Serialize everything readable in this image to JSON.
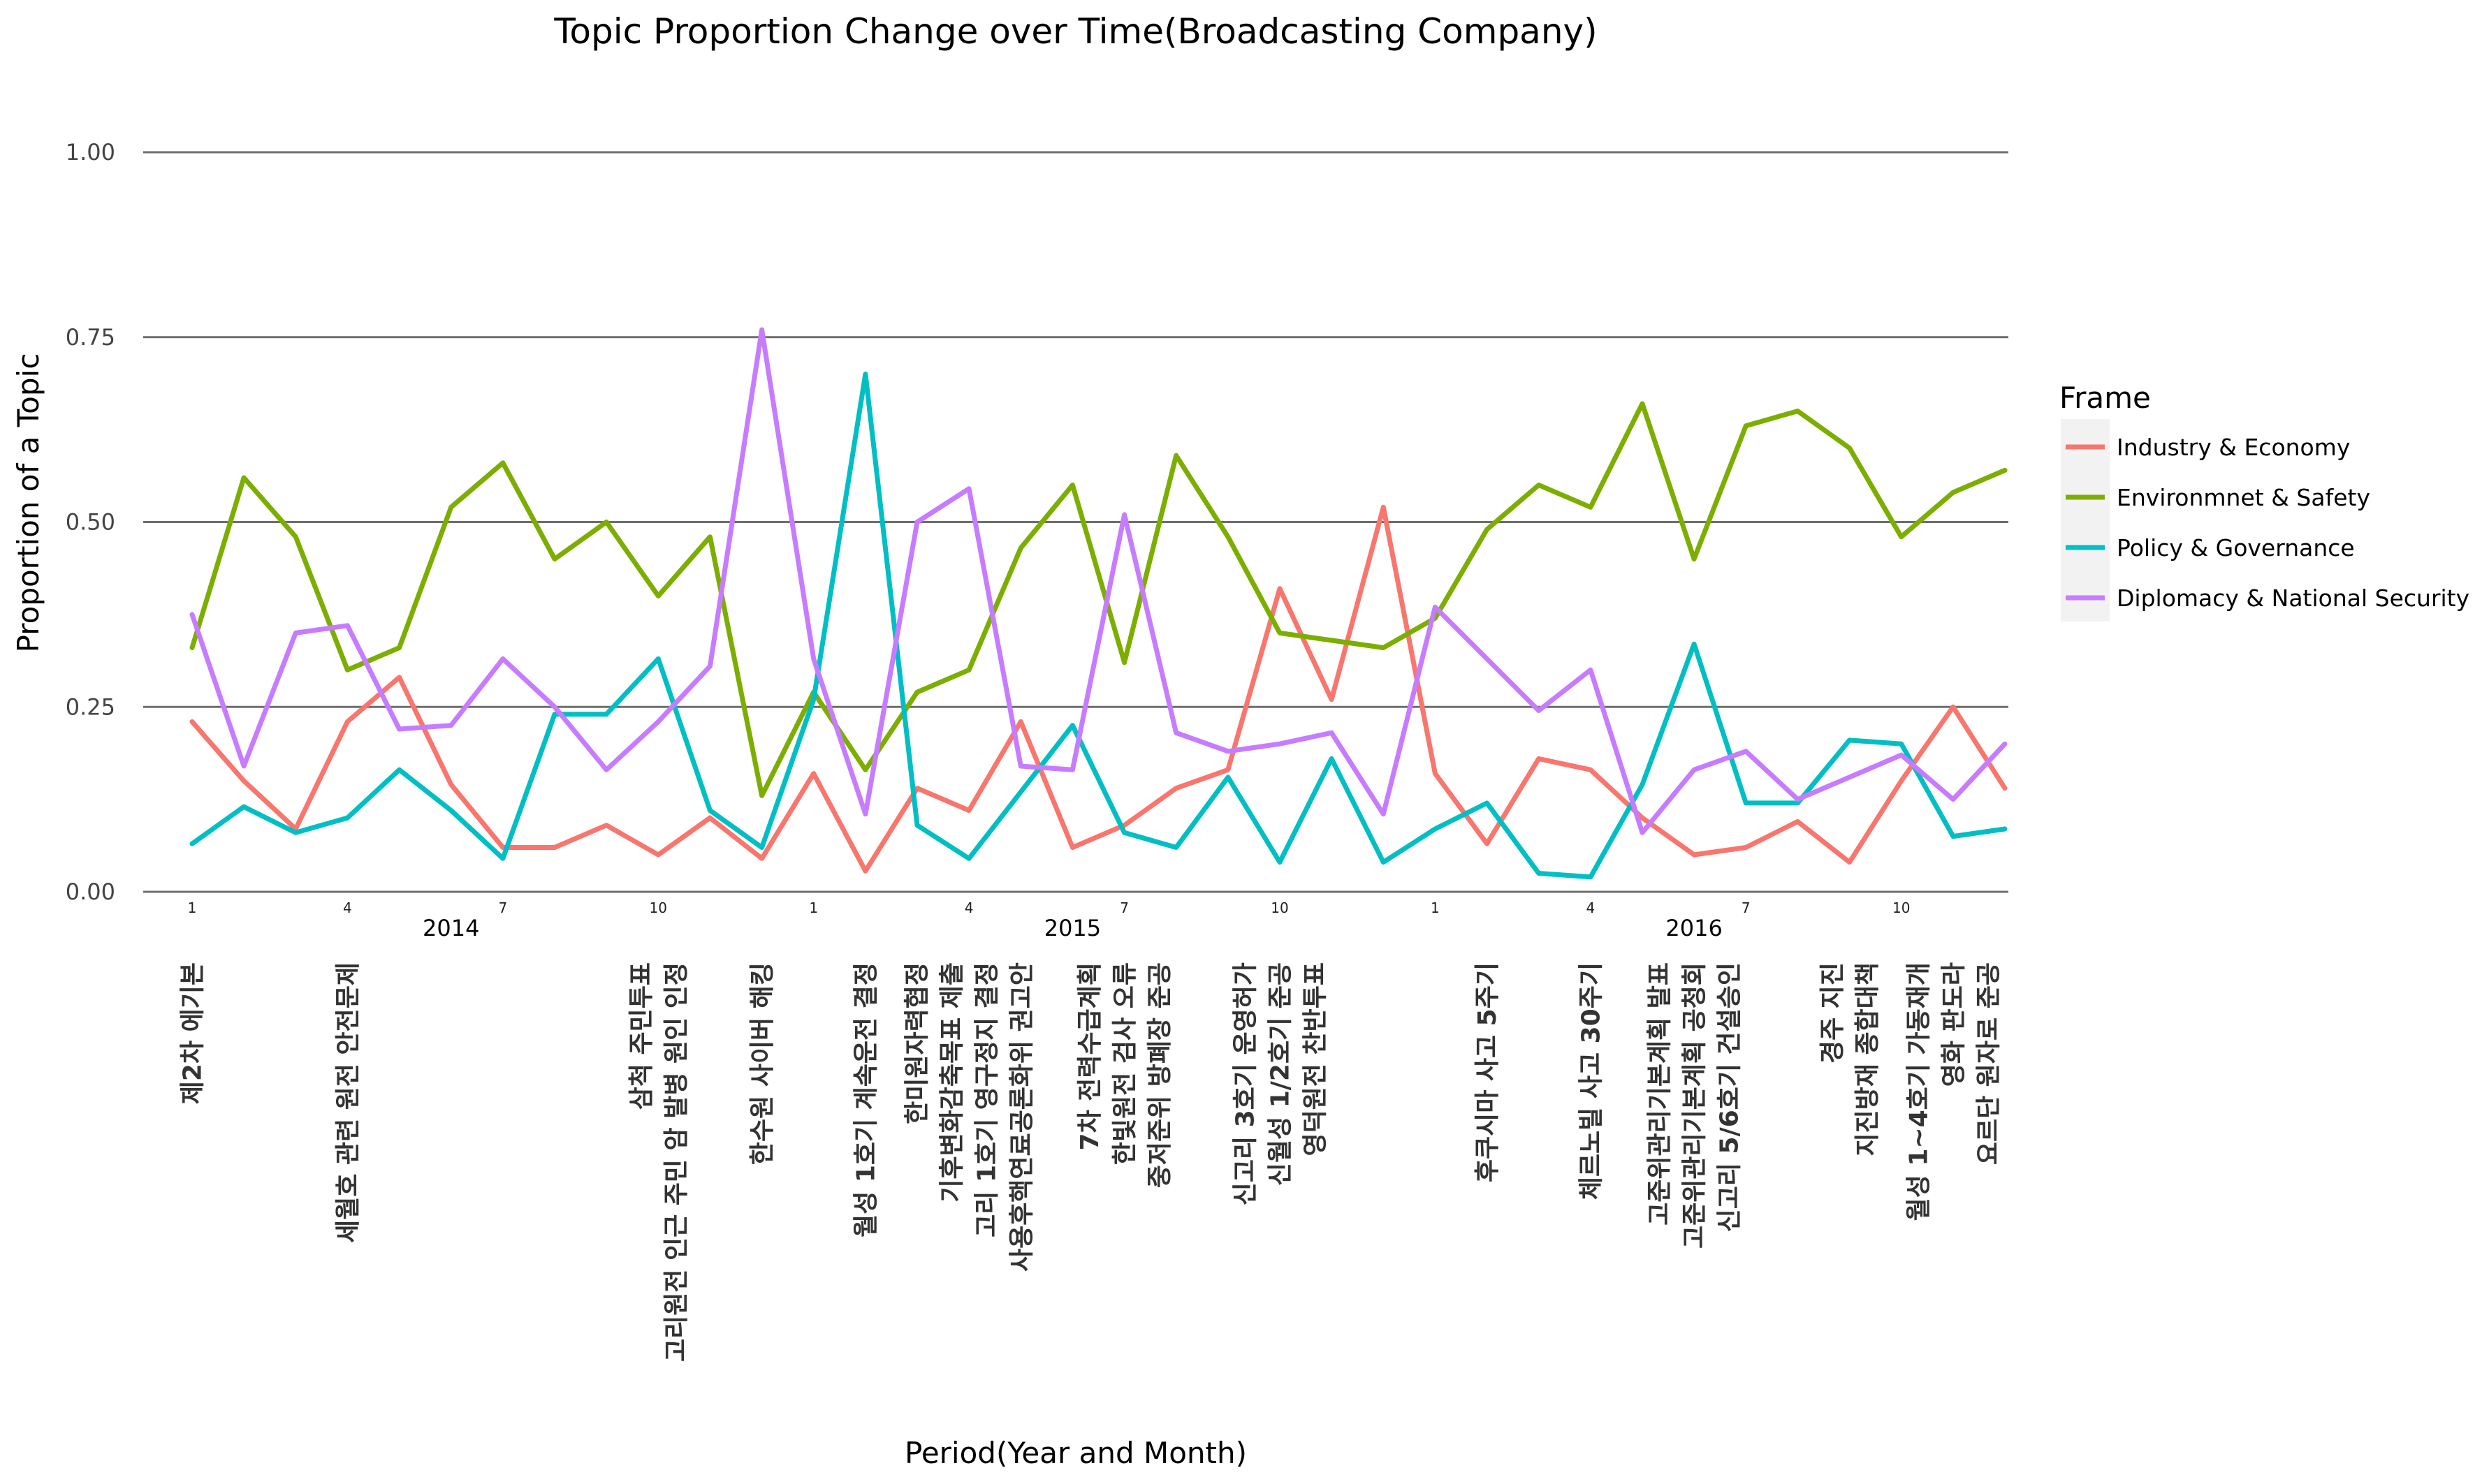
{
  "chart_data": {
    "type": "line",
    "title": "Topic Proportion Change over Time(Broadcasting Company)",
    "xlabel": "Period(Year and Month)",
    "ylabel": "Proportion of a Topic",
    "ylim": [
      0,
      1.0
    ],
    "xlim": [
      1,
      36
    ],
    "yticks": [
      {
        "value": 0.0,
        "label": "0.00"
      },
      {
        "value": 0.25,
        "label": "0.25"
      },
      {
        "value": 0.5,
        "label": "0.50"
      },
      {
        "value": 0.75,
        "label": "0.75"
      },
      {
        "value": 1.0,
        "label": "1.00"
      }
    ],
    "month_ticks": [
      {
        "x": 1,
        "label": "1"
      },
      {
        "x": 4,
        "label": "4"
      },
      {
        "x": 7,
        "label": "7"
      },
      {
        "x": 10,
        "label": "10"
      },
      {
        "x": 13,
        "label": "1"
      },
      {
        "x": 16,
        "label": "4"
      },
      {
        "x": 19,
        "label": "7"
      },
      {
        "x": 22,
        "label": "10"
      },
      {
        "x": 25,
        "label": "1"
      },
      {
        "x": 28,
        "label": "4"
      },
      {
        "x": 31,
        "label": "7"
      },
      {
        "x": 34,
        "label": "10"
      }
    ],
    "years": [
      {
        "x": 6,
        "label": "2014"
      },
      {
        "x": 18,
        "label": "2015"
      },
      {
        "x": 30,
        "label": "2016"
      }
    ],
    "x": [
      1,
      2,
      3,
      4,
      5,
      6,
      7,
      8,
      9,
      10,
      11,
      12,
      13,
      14,
      15,
      16,
      17,
      18,
      19,
      20,
      21,
      22,
      23,
      24,
      25,
      26,
      27,
      28,
      29,
      30,
      31,
      32,
      33,
      34,
      35,
      36
    ],
    "grid": true,
    "legend_position": "right",
    "legend_title": "Frame",
    "series": [
      {
        "name": "Industry & Economy",
        "color": "#F8766D",
        "values": [
          0.23,
          0.15,
          0.085,
          0.23,
          0.29,
          0.145,
          0.06,
          0.06,
          0.09,
          0.05,
          0.1,
          0.045,
          0.16,
          0.028,
          0.14,
          0.11,
          0.23,
          0.06,
          0.09,
          0.14,
          0.165,
          0.41,
          0.26,
          0.52,
          0.16,
          0.065,
          0.18,
          0.165,
          0.1,
          0.05,
          0.06,
          0.095,
          0.04,
          0.15,
          0.25,
          0.14
        ]
      },
      {
        "name": "Environmnet & Safety",
        "color": "#7CAE00",
        "values": [
          0.33,
          0.56,
          0.48,
          0.3,
          0.33,
          0.52,
          0.58,
          0.45,
          0.5,
          0.4,
          0.48,
          0.13,
          0.27,
          0.165,
          0.27,
          0.3,
          0.465,
          0.55,
          0.31,
          0.59,
          0.48,
          0.35,
          0.34,
          0.33,
          0.37,
          0.49,
          0.55,
          0.52,
          0.66,
          0.45,
          0.63,
          0.65,
          0.6,
          0.48,
          0.54,
          0.57
        ]
      },
      {
        "name": "Policy & Governance",
        "color": "#00BFC4",
        "values": [
          0.065,
          0.115,
          0.08,
          0.1,
          0.165,
          0.11,
          0.045,
          0.24,
          0.24,
          0.315,
          0.11,
          0.06,
          0.26,
          0.7,
          0.09,
          0.045,
          0.135,
          0.225,
          0.08,
          0.06,
          0.155,
          0.04,
          0.18,
          0.04,
          0.085,
          0.12,
          0.025,
          0.02,
          0.145,
          0.335,
          0.12,
          0.12,
          0.205,
          0.2,
          0.075,
          0.085
        ]
      },
      {
        "name": "Diplomacy & National Security",
        "color": "#C77CFF",
        "values": [
          0.375,
          0.17,
          0.35,
          0.36,
          0.22,
          0.225,
          0.315,
          0.25,
          0.165,
          0.23,
          0.305,
          0.76,
          0.315,
          0.105,
          0.5,
          0.545,
          0.17,
          0.165,
          0.51,
          0.215,
          0.19,
          0.2,
          0.215,
          0.105,
          0.385,
          0.315,
          0.245,
          0.3,
          0.08,
          0.165,
          0.19,
          0.125,
          0.155,
          0.185,
          0.125,
          0.2
        ]
      }
    ],
    "event_annotations": [
      {
        "x": 1,
        "lines": [
          "제2차 에기본"
        ]
      },
      {
        "x": 4,
        "lines": [
          "세월호 관련 원전 안전문제"
        ]
      },
      {
        "x": 10,
        "lines": [
          "삼척 주민투표",
          "고리원전 인근 주민 암 발병 원인 인정"
        ]
      },
      {
        "x": 12,
        "lines": [
          "한수원 사이버 해킹"
        ]
      },
      {
        "x": 14,
        "lines": [
          "월성 1호기 계속운전 결정"
        ]
      },
      {
        "x": 16,
        "lines": [
          "한미원자력협정",
          "기후변화감축목표 제출",
          "고리 1호기 영구정지 결정",
          "사용후핵연료공론화위 권고안"
        ]
      },
      {
        "x": 19,
        "lines": [
          "7차 전력수급계획",
          "한빛원전 검사 오류",
          "중저준위 방폐장 준공"
        ]
      },
      {
        "x": 22,
        "lines": [
          "신고리 3호기 운영허가",
          "신월성 1/2호기 준공",
          "영덕원전 찬반투표"
        ]
      },
      {
        "x": 26,
        "lines": [
          "후쿠시마 사고 5주기"
        ]
      },
      {
        "x": 28,
        "lines": [
          "체르노빌 사고 30주기"
        ]
      },
      {
        "x": 30,
        "lines": [
          "고준위관리기본계획 발표",
          "고준위관리기본계획 공청회",
          "신고리 5/6호기 건설승인"
        ]
      },
      {
        "x": 33,
        "lines": [
          "경주 지진",
          "지진방재 종합대책"
        ]
      },
      {
        "x": 35,
        "lines": [
          "월성 1~4호기 가동재개",
          "영화 판도라",
          "요르단 원자로 준공"
        ]
      }
    ]
  }
}
